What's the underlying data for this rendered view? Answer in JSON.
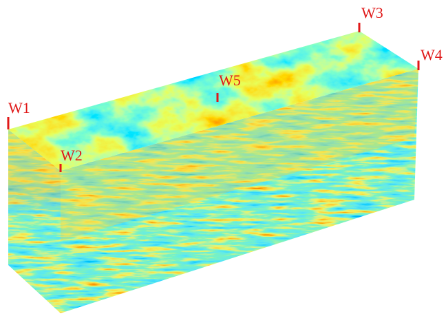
{
  "wells": [
    {
      "label": "W1"
    },
    {
      "label": "W2"
    },
    {
      "label": "W3"
    },
    {
      "label": "W4"
    },
    {
      "label": "W5"
    }
  ]
}
